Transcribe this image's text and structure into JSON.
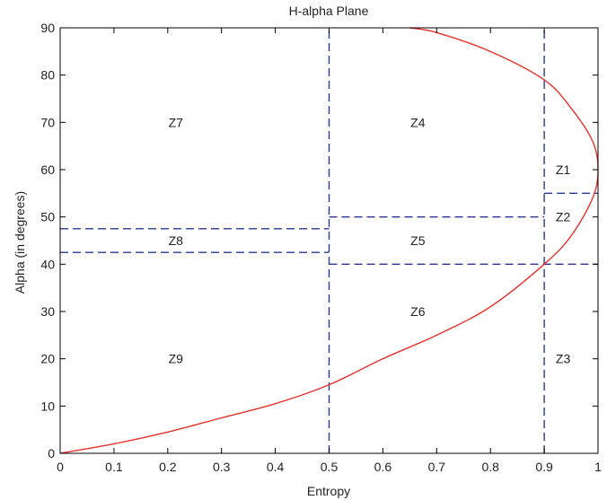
{
  "chart_data": {
    "type": "line",
    "title": "H-alpha Plane",
    "xlabel": "Entropy",
    "ylabel": "Alpha (in degrees)",
    "xlim": [
      0,
      1
    ],
    "ylim": [
      0,
      90
    ],
    "x_ticks": [
      0,
      0.1,
      0.2,
      0.3,
      0.4,
      0.5,
      0.6,
      0.7,
      0.8,
      0.9,
      1
    ],
    "x_tick_labels": [
      "0",
      "0.1",
      "0.2",
      "0.3",
      "0.4",
      "0.5",
      "0.6",
      "0.7",
      "0.8",
      "0.9",
      "1"
    ],
    "y_ticks": [
      0,
      10,
      20,
      30,
      40,
      50,
      60,
      70,
      80,
      90
    ],
    "y_tick_labels": [
      "0",
      "10",
      "20",
      "30",
      "40",
      "50",
      "60",
      "70",
      "80",
      "90"
    ],
    "grid": false,
    "curve": {
      "color": "#e8302a",
      "x": [
        0.0,
        0.1,
        0.2,
        0.3,
        0.4,
        0.5,
        0.6,
        0.7,
        0.8,
        0.9,
        0.95,
        0.99,
        1.0,
        0.99,
        0.95,
        0.9,
        0.8,
        0.7,
        0.65
      ],
      "y": [
        0,
        2,
        4.5,
        7.5,
        10.5,
        14.5,
        20,
        25,
        31,
        40,
        46,
        54,
        60,
        66,
        73,
        79,
        85,
        89,
        90
      ]
    },
    "boundaries": {
      "color": "#2a3a8c",
      "vertical": [
        {
          "x": 0.5,
          "y": [
            0,
            90
          ]
        },
        {
          "x": 0.9,
          "y": [
            0,
            90
          ]
        }
      ],
      "horizontal": [
        {
          "y": 47.5,
          "x": [
            0,
            0.5
          ]
        },
        {
          "y": 42.5,
          "x": [
            0,
            0.5
          ]
        },
        {
          "y": 50,
          "x": [
            0.5,
            0.9
          ]
        },
        {
          "y": 40,
          "x": [
            0.5,
            1.0
          ]
        },
        {
          "y": 55,
          "x": [
            0.9,
            1.0
          ]
        }
      ]
    },
    "zones": [
      {
        "label": "Z1",
        "x": 0.935,
        "y": 60
      },
      {
        "label": "Z2",
        "x": 0.935,
        "y": 50
      },
      {
        "label": "Z3",
        "x": 0.935,
        "y": 20
      },
      {
        "label": "Z4",
        "x": 0.665,
        "y": 70
      },
      {
        "label": "Z5",
        "x": 0.665,
        "y": 45
      },
      {
        "label": "Z6",
        "x": 0.665,
        "y": 30
      },
      {
        "label": "Z7",
        "x": 0.215,
        "y": 70
      },
      {
        "label": "Z8",
        "x": 0.215,
        "y": 45
      },
      {
        "label": "Z9",
        "x": 0.215,
        "y": 20
      }
    ]
  }
}
